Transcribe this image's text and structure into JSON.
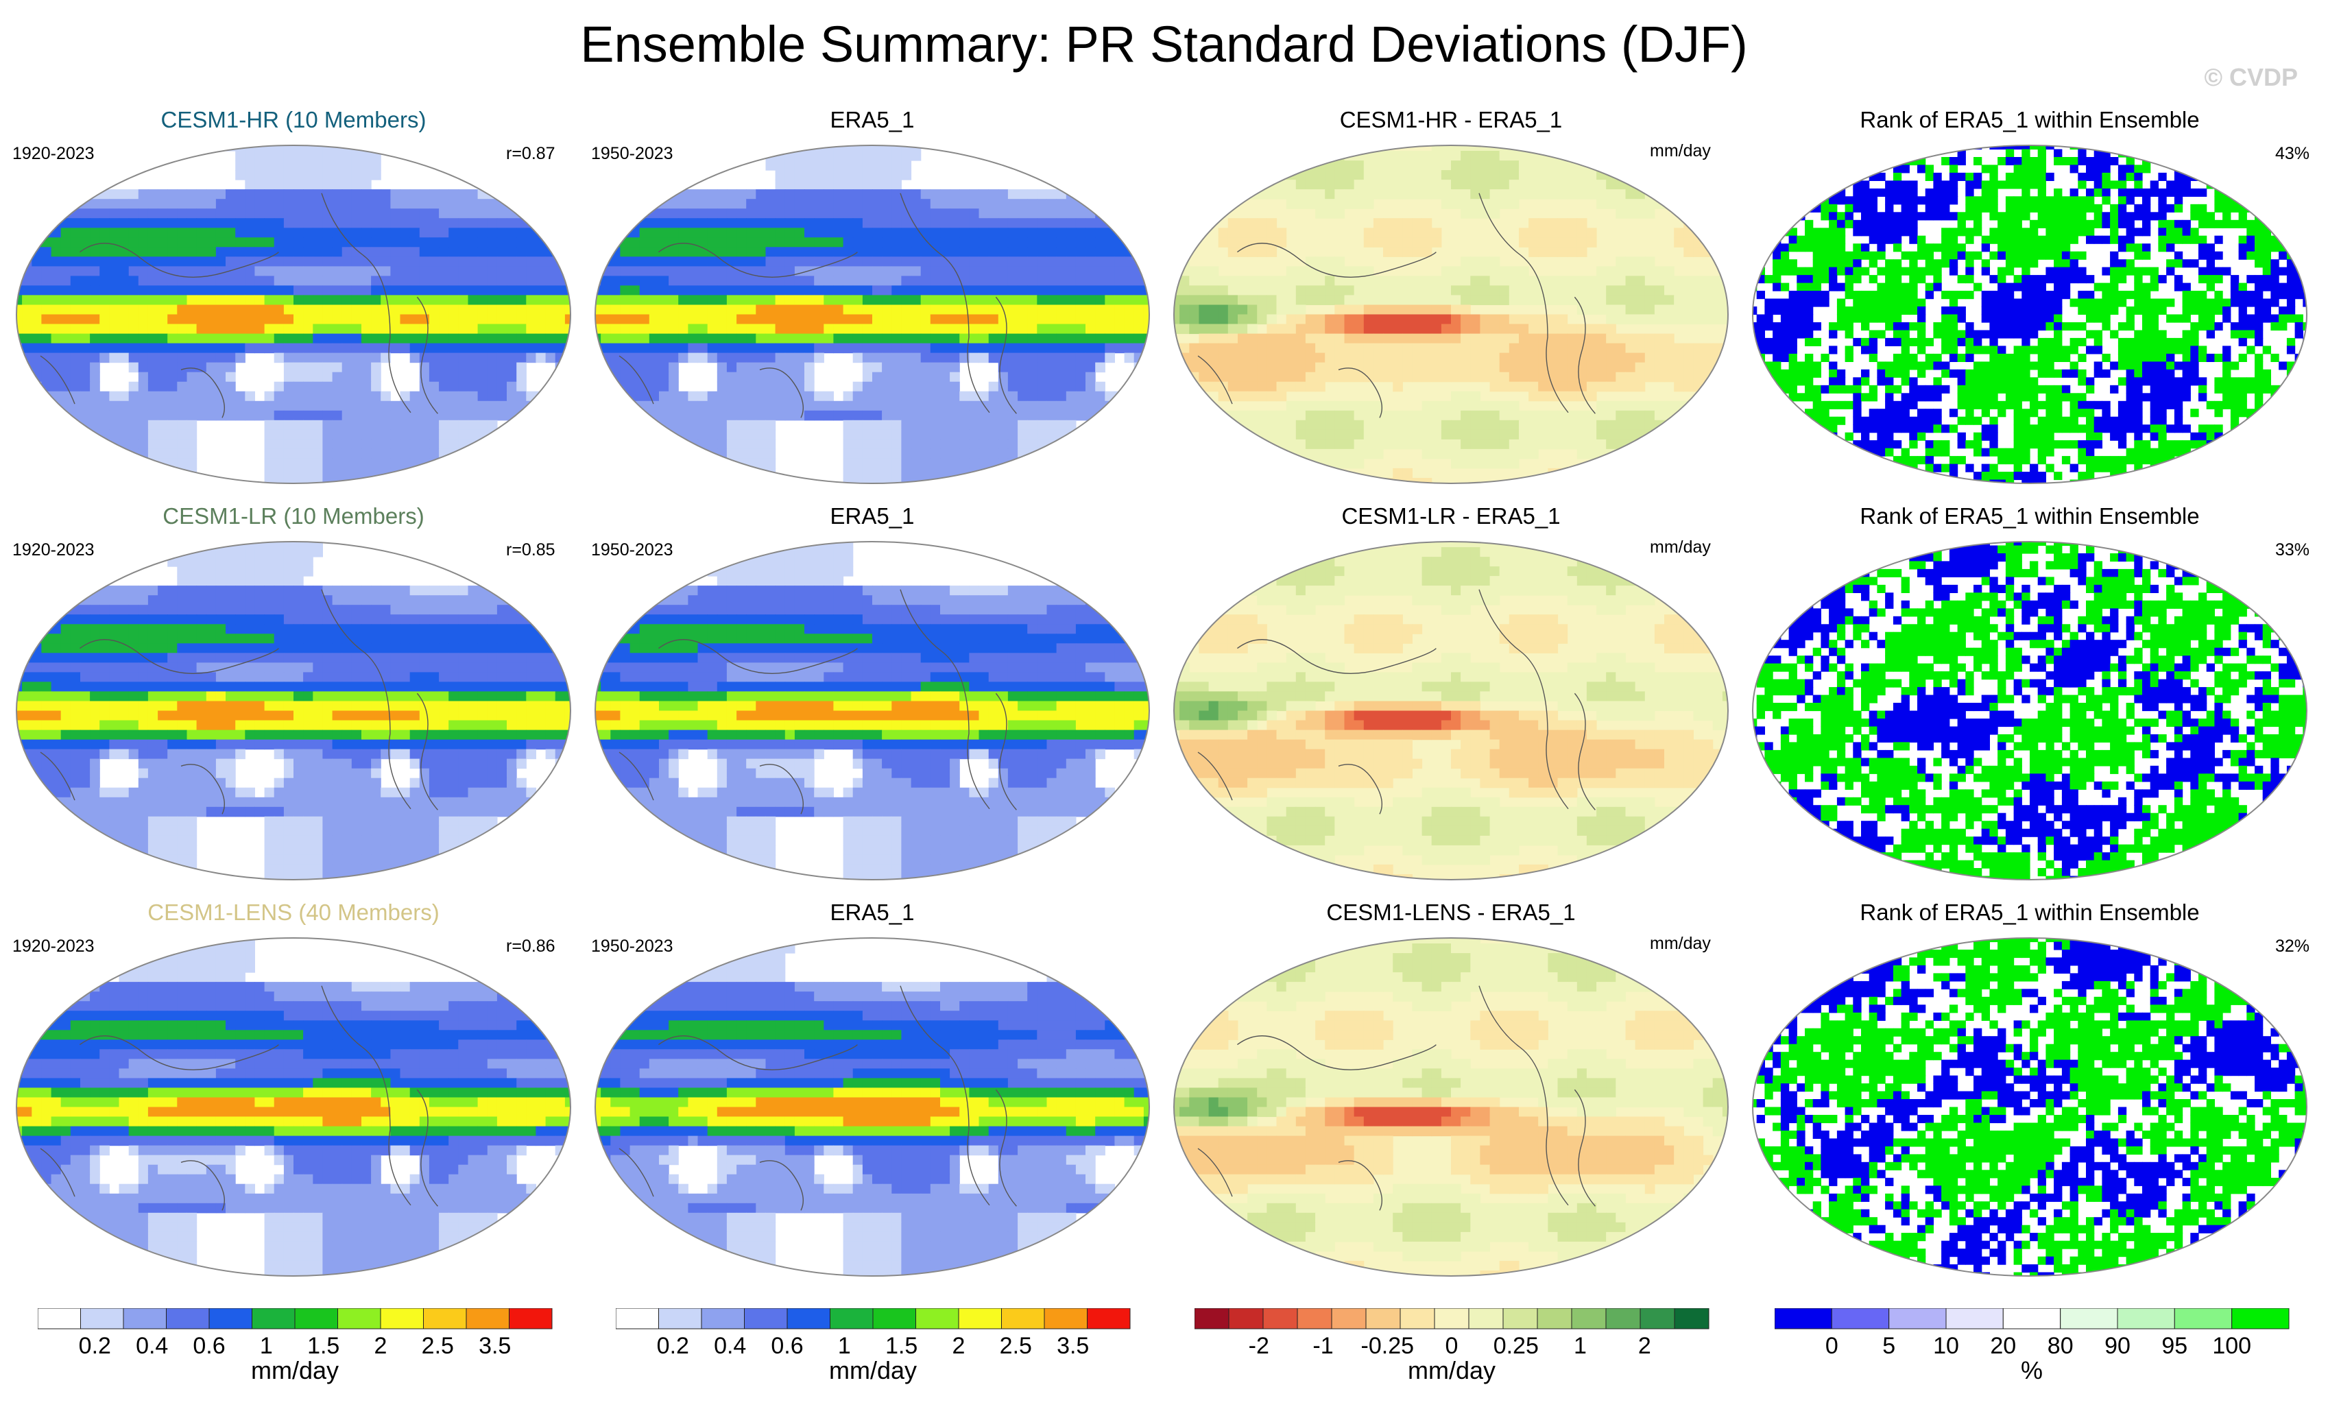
{
  "title": "Ensemble Summary: PR Standard Deviations (DJF)",
  "watermark": "© CVDP",
  "colors": {
    "pr_levels": [
      "#ffffff",
      "#c9d6f8",
      "#8ea2ef",
      "#5b74ea",
      "#1e5ee9",
      "#1bb33c",
      "#19c51e",
      "#8ef022",
      "#f8fb1f",
      "#fbcb1a",
      "#f89a14",
      "#f2160c"
    ],
    "diff_levels": [
      "#9c0f23",
      "#c72b28",
      "#e0523a",
      "#f07f4f",
      "#f6a86b",
      "#f9cc89",
      "#fbe6a8",
      "#f8f4c2",
      "#eef4bc",
      "#d5e79c",
      "#b5d780",
      "#8dc56d",
      "#60ad5c",
      "#32944b",
      "#0d6c36"
    ],
    "rank_levels": [
      "#0000ee",
      "#6767f5",
      "#b3b3f8",
      "#e5e5fc",
      "#ffffff",
      "#e3fbe3",
      "#bff7bf",
      "#86f586",
      "#00ee00"
    ]
  },
  "rows": [
    {
      "model": {
        "title": "CESM1-HR (10 Members)",
        "title_color": "#13607c",
        "years": "1920-2023",
        "corr": "r=0.87"
      },
      "obs": {
        "title": "ERA5_1",
        "years": "1950-2023"
      },
      "diff": {
        "title": "CESM1-HR - ERA5_1",
        "units": "mm/day"
      },
      "rank": {
        "title": "Rank of ERA5_1 within Ensemble",
        "pct": "43%"
      }
    },
    {
      "model": {
        "title": "CESM1-LR (10 Members)",
        "title_color": "#5b7f5b",
        "years": "1920-2023",
        "corr": "r=0.85"
      },
      "obs": {
        "title": "ERA5_1",
        "years": "1950-2023"
      },
      "diff": {
        "title": "CESM1-LR - ERA5_1",
        "units": "mm/day"
      },
      "rank": {
        "title": "Rank of ERA5_1 within Ensemble",
        "pct": "33%"
      }
    },
    {
      "model": {
        "title": "CESM1-LENS (40 Members)",
        "title_color": "#d3c587",
        "years": "1920-2023",
        "corr": "r=0.86"
      },
      "obs": {
        "title": "ERA5_1",
        "years": "1950-2023"
      },
      "diff": {
        "title": "CESM1-LENS - ERA5_1",
        "units": "mm/day"
      },
      "rank": {
        "title": "Rank of ERA5_1 within Ensemble",
        "pct": "32%"
      }
    }
  ],
  "colorbars": [
    {
      "name": "model-pr",
      "ticks": [
        "0.2",
        "0.4",
        "0.6",
        "1",
        "1.5",
        "2",
        "2.5",
        "3.5"
      ],
      "label": "mm/day"
    },
    {
      "name": "obs-pr",
      "ticks": [
        "0.2",
        "0.4",
        "0.6",
        "1",
        "1.5",
        "2",
        "2.5",
        "3.5"
      ],
      "label": "mm/day"
    },
    {
      "name": "difference",
      "ticks": [
        "-2",
        "-1",
        "-0.25",
        "0",
        "0.25",
        "1",
        "2"
      ],
      "label": "mm/day"
    },
    {
      "name": "rank",
      "ticks": [
        "0",
        "5",
        "10",
        "20",
        "80",
        "90",
        "95",
        "100"
      ],
      "label": "%"
    }
  ],
  "chart_data": {
    "type": "heatmap",
    "title": "Ensemble Summary: PR Standard Deviations (DJF)",
    "projection": "global map panels (3 rows × 4 columns)",
    "panels_per_row": [
      "model ensemble mean PR standard deviation",
      "observed PR standard deviation",
      "model minus observation",
      "rank of observation within ensemble"
    ],
    "pr_contour_levels": [
      0.2,
      0.4,
      0.6,
      1,
      1.5,
      2,
      2.5,
      3.5
    ],
    "diff_contour_levels": [
      -2,
      -1,
      -0.25,
      0,
      0.25,
      1,
      2
    ],
    "rank_levels_percent": [
      0,
      5,
      10,
      20,
      80,
      90,
      95,
      100
    ],
    "pattern_correlations": [
      0.87,
      0.85,
      0.86
    ],
    "rank_summary_percent": [
      43,
      33,
      32
    ]
  }
}
